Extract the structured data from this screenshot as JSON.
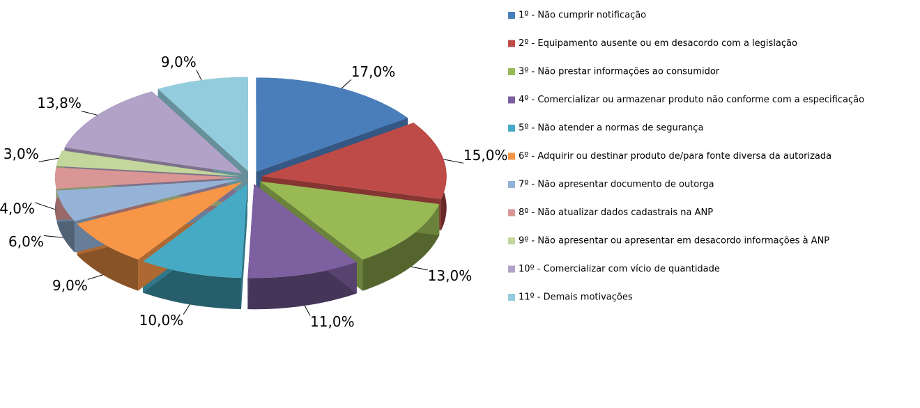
{
  "chart_data": {
    "type": "pie3d",
    "categories": [
      "1º - Não cumprir notificação",
      "2º - Equipamento ausente ou em desacordo com a legislação",
      "3º - Não prestar informações ao consumidor",
      "4º - Comercializar ou armazenar produto não conforme com a especificação",
      "5º - Não atender a normas de segurança",
      "6º - Adquirir ou destinar produto de/para fonte diversa da autorizada",
      "7º - Não apresentar documento de outorga",
      "8º - Não atualizar dados cadastrais na ANP",
      "9º - Não apresentar ou apresentar em desacordo informações à ANP",
      "10º - Comercializar com vício de quantidade",
      "11º - Demais motivações"
    ],
    "values": [
      17.0,
      15.0,
      13.0,
      11.0,
      10.0,
      9.0,
      6.0,
      4.0,
      3.0,
      13.8,
      9.0
    ],
    "value_labels": [
      "17,0%",
      "15,0%",
      "13,0%",
      "11,0%",
      "10,0%",
      "9,0%",
      "6,0%",
      "4,0%",
      "3,0%",
      "13,8%",
      "9,0%"
    ],
    "colors": [
      "#4a7ebb",
      "#be4b48",
      "#98b954",
      "#7d60a0",
      "#46aac5",
      "#f79646",
      "#95b3d7",
      "#d99694",
      "#c3d69b",
      "#b3a2c7",
      "#93cddd"
    ],
    "legend": "right"
  }
}
